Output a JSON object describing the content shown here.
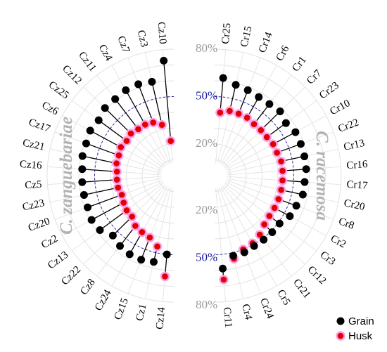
{
  "chart_data": {
    "type": "polar-lollipop",
    "radial_axis": {
      "ticks": [
        {
          "label": "20%",
          "value": 20
        },
        {
          "label": "50%",
          "value": 50
        },
        {
          "label": "80%",
          "value": 80
        }
      ],
      "range": [
        0,
        80
      ]
    },
    "species": [
      {
        "name": "C. zanguebariae",
        "side": "left",
        "categories": [
          "Cz10",
          "Cz3",
          "Cz7",
          "Cz4",
          "Cz11",
          "Cz12",
          "Cz25",
          "Cz6",
          "Cz17",
          "Cz21",
          "Cz16",
          "Cz5",
          "Cz23",
          "Cz20",
          "Cz2",
          "Cz13",
          "Cz22",
          "Cz8",
          "Cz24",
          "Cz15",
          "Cz1",
          "Cz14"
        ],
        "grain": [
          73,
          61,
          62,
          62,
          61,
          61,
          59,
          60,
          59,
          59,
          58,
          58,
          58,
          58,
          59,
          58,
          54,
          56,
          57,
          57,
          56,
          50
        ],
        "husk": [
          22,
          33,
          36,
          37,
          37,
          38,
          37,
          38,
          37,
          37,
          36,
          36,
          36,
          35,
          36,
          37,
          37,
          40,
          41,
          42,
          46,
          64
        ]
      },
      {
        "name": "C. racemosa",
        "side": "right",
        "categories": [
          "Cr25",
          "Cr15",
          "Cr14",
          "Cr6",
          "Cr1",
          "Cr7",
          "Cr23",
          "Cr10",
          "Cr22",
          "Cr13",
          "Cr16",
          "Cr17",
          "Cr20",
          "Cr8",
          "Cr2",
          "Cr3",
          "Cr12",
          "Cr21",
          "Cr5",
          "Cr24",
          "Cr4",
          "Cr11"
        ],
        "grain": [
          62,
          59,
          58,
          57,
          57,
          58,
          56,
          58,
          58,
          58,
          58,
          57,
          57,
          55,
          54,
          51,
          51,
          51,
          51,
          52,
          52,
          59
        ],
        "husk": [
          40,
          42,
          42,
          42,
          41,
          41,
          41,
          42,
          42,
          43,
          43,
          43,
          43,
          43,
          43,
          43,
          44,
          47,
          49,
          50,
          54,
          66
        ]
      }
    ],
    "series": [
      {
        "name": "Grain",
        "color": "#000000"
      },
      {
        "name": "Husk",
        "color": "#e10000"
      }
    ],
    "legend_position": "bottom-right",
    "grid": true
  }
}
